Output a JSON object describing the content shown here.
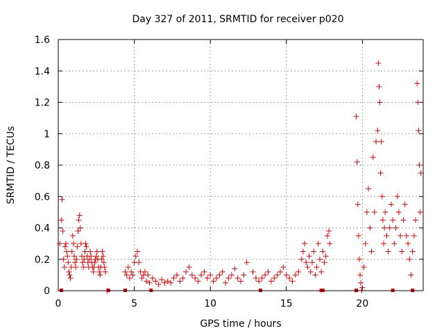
{
  "chart_data": {
    "type": "scatter",
    "title": "Day 327 of 2011, SRMTID for receiver p020",
    "xlabel": "GPS time / hours",
    "ylabel": "SRMTID / TECUs",
    "xlim": [
      0,
      24
    ],
    "ylim": [
      0,
      1.6
    ],
    "xticks": [
      0,
      5,
      10,
      15,
      20
    ],
    "xtick_labels": [
      "0",
      "5",
      "10",
      "15",
      "20"
    ],
    "yticks": [
      0,
      0.2,
      0.4,
      0.6,
      0.8,
      1,
      1.2,
      1.4,
      1.6
    ],
    "ytick_labels": [
      "0",
      "0.2",
      "0.4",
      "0.6",
      "0.8",
      "1",
      "1.2",
      "1.4",
      "1.6"
    ],
    "grid": true,
    "marker": "+",
    "series_color": "#e00000",
    "series": [
      {
        "name": "SRMTID",
        "x": [
          0.1,
          0.2,
          0.25,
          0.3,
          0.35,
          0.4,
          0.45,
          0.5,
          0.55,
          0.6,
          0.65,
          0.7,
          0.75,
          0.8,
          0.85,
          0.9,
          0.95,
          1.0,
          1.05,
          1.1,
          1.15,
          1.2,
          1.25,
          1.3,
          1.35,
          1.4,
          1.45,
          1.5,
          1.55,
          1.6,
          1.65,
          1.7,
          1.75,
          1.8,
          1.85,
          1.9,
          1.95,
          2.0,
          2.05,
          2.1,
          2.15,
          2.2,
          2.25,
          2.3,
          2.35,
          2.4,
          2.45,
          2.5,
          2.55,
          2.6,
          2.65,
          2.7,
          2.75,
          2.8,
          2.85,
          2.9,
          2.95,
          3.0,
          3.05,
          3.1,
          3.2,
          4.4,
          4.5,
          4.6,
          4.7,
          4.8,
          4.9,
          5.0,
          5.1,
          5.2,
          5.3,
          5.4,
          5.5,
          5.6,
          5.7,
          5.8,
          5.9,
          6.0,
          6.2,
          6.4,
          6.6,
          6.8,
          7.0,
          7.2,
          7.4,
          7.6,
          7.8,
          8.0,
          8.2,
          8.4,
          8.6,
          8.8,
          9.0,
          9.2,
          9.4,
          9.6,
          9.8,
          10.0,
          10.2,
          10.4,
          10.6,
          10.8,
          11.0,
          11.2,
          11.4,
          11.6,
          11.8,
          12.0,
          12.2,
          12.4,
          12.8,
          13.0,
          13.2,
          13.4,
          13.6,
          13.8,
          14.0,
          14.2,
          14.4,
          14.6,
          14.8,
          15.0,
          15.2,
          15.4,
          15.6,
          15.8,
          16.0,
          16.1,
          16.2,
          16.3,
          16.4,
          16.5,
          16.6,
          16.7,
          16.8,
          16.9,
          17.0,
          17.1,
          17.2,
          17.3,
          17.4,
          17.5,
          17.6,
          17.7,
          17.8,
          17.85,
          19.6,
          19.65,
          19.7,
          19.75,
          19.8,
          19.85,
          19.9,
          19.95,
          20.0,
          20.1,
          20.2,
          20.3,
          20.4,
          20.5,
          20.6,
          20.7,
          20.8,
          20.9,
          21.0,
          21.05,
          21.1,
          21.15,
          21.2,
          21.25,
          21.3,
          21.35,
          21.4,
          21.45,
          21.5,
          21.6,
          21.7,
          21.8,
          21.9,
          22.0,
          22.1,
          22.2,
          22.3,
          22.4,
          22.5,
          22.6,
          22.7,
          22.8,
          22.9,
          23.0,
          23.1,
          23.2,
          23.3,
          23.4,
          23.5,
          23.6,
          23.65,
          23.7,
          23.75,
          23.8,
          23.85
        ],
        "y": [
          0.3,
          0.45,
          0.58,
          0.38,
          0.2,
          0.15,
          0.28,
          0.3,
          0.25,
          0.22,
          0.18,
          0.12,
          0.1,
          0.08,
          0.15,
          0.25,
          0.35,
          0.3,
          0.22,
          0.18,
          0.15,
          0.2,
          0.28,
          0.38,
          0.45,
          0.48,
          0.4,
          0.3,
          0.22,
          0.18,
          0.15,
          0.2,
          0.25,
          0.3,
          0.28,
          0.22,
          0.18,
          0.15,
          0.2,
          0.25,
          0.22,
          0.18,
          0.15,
          0.12,
          0.15,
          0.18,
          0.2,
          0.22,
          0.25,
          0.2,
          0.15,
          0.12,
          0.1,
          0.15,
          0.2,
          0.25,
          0.22,
          0.18,
          0.15,
          0.12,
          0.0,
          0.12,
          0.1,
          0.15,
          0.08,
          0.12,
          0.1,
          0.18,
          0.22,
          0.25,
          0.18,
          0.12,
          0.08,
          0.1,
          0.12,
          0.06,
          0.1,
          0.05,
          0.08,
          0.06,
          0.04,
          0.07,
          0.05,
          0.06,
          0.05,
          0.08,
          0.1,
          0.06,
          0.08,
          0.12,
          0.15,
          0.1,
          0.08,
          0.06,
          0.1,
          0.12,
          0.08,
          0.1,
          0.06,
          0.08,
          0.1,
          0.12,
          0.05,
          0.08,
          0.1,
          0.14,
          0.08,
          0.06,
          0.1,
          0.18,
          0.12,
          0.08,
          0.06,
          0.08,
          0.1,
          0.12,
          0.06,
          0.08,
          0.1,
          0.12,
          0.15,
          0.1,
          0.08,
          0.06,
          0.1,
          0.12,
          0.2,
          0.25,
          0.3,
          0.18,
          0.15,
          0.22,
          0.12,
          0.18,
          0.25,
          0.1,
          0.15,
          0.3,
          0.2,
          0.12,
          0.25,
          0.18,
          0.22,
          0.35,
          0.38,
          0.3,
          1.11,
          0.82,
          0.55,
          0.35,
          0.2,
          0.1,
          0.05,
          0.0,
          0.02,
          0.15,
          0.3,
          0.5,
          0.65,
          0.4,
          0.25,
          0.85,
          0.5,
          0.95,
          1.02,
          1.45,
          1.3,
          1.2,
          0.75,
          0.95,
          0.6,
          0.45,
          0.3,
          0.4,
          0.5,
          0.35,
          0.25,
          0.4,
          0.55,
          0.45,
          0.3,
          0.4,
          0.6,
          0.5,
          0.35,
          0.25,
          0.45,
          0.55,
          0.35,
          0.3,
          0.2,
          0.1,
          0.25,
          0.35,
          0.45,
          1.32,
          1.2,
          1.02,
          0.8,
          0.5,
          0.75
        ]
      }
    ],
    "axis_markers_y0": [
      0.2,
      3.3,
      4.4,
      6.1,
      13.3,
      17.3,
      17.4,
      19.6,
      22.0,
      23.3
    ]
  }
}
